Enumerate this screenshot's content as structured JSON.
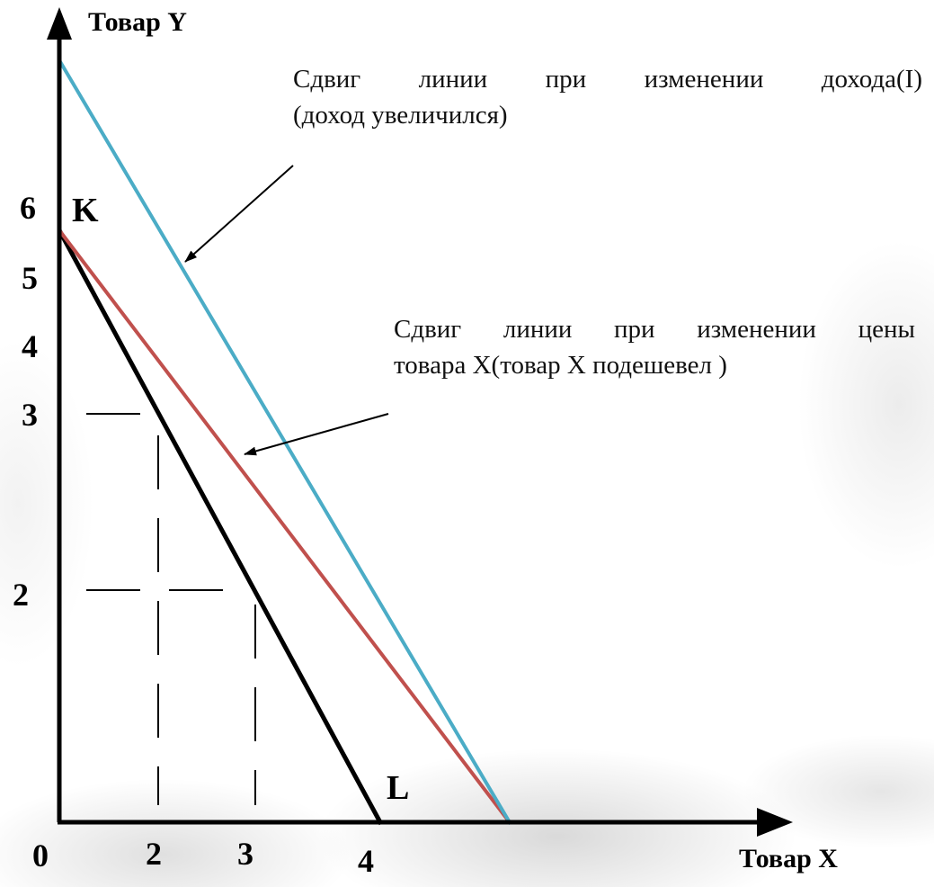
{
  "diagram": {
    "axes": {
      "y_title": "Товар Y",
      "x_title": "Товар X"
    },
    "y_ticks": [
      "6",
      "5",
      "4",
      "3",
      "2"
    ],
    "x_ticks": [
      "0",
      "2",
      "3",
      "4"
    ],
    "points": {
      "k": "K",
      "l": "L"
    },
    "annotations": {
      "income_shift": {
        "line1": "Сдвиг линии при изменении дохода(I)",
        "line2": "(доход увеличился)"
      },
      "price_shift": {
        "line1": "Сдвиг линии при изменении цены",
        "line2": "товара X(товар X подешевел )"
      }
    },
    "colors": {
      "original_line": "#000000",
      "price_shift_line": "#c0504d",
      "income_shift_line": "#4bacc6"
    }
  }
}
